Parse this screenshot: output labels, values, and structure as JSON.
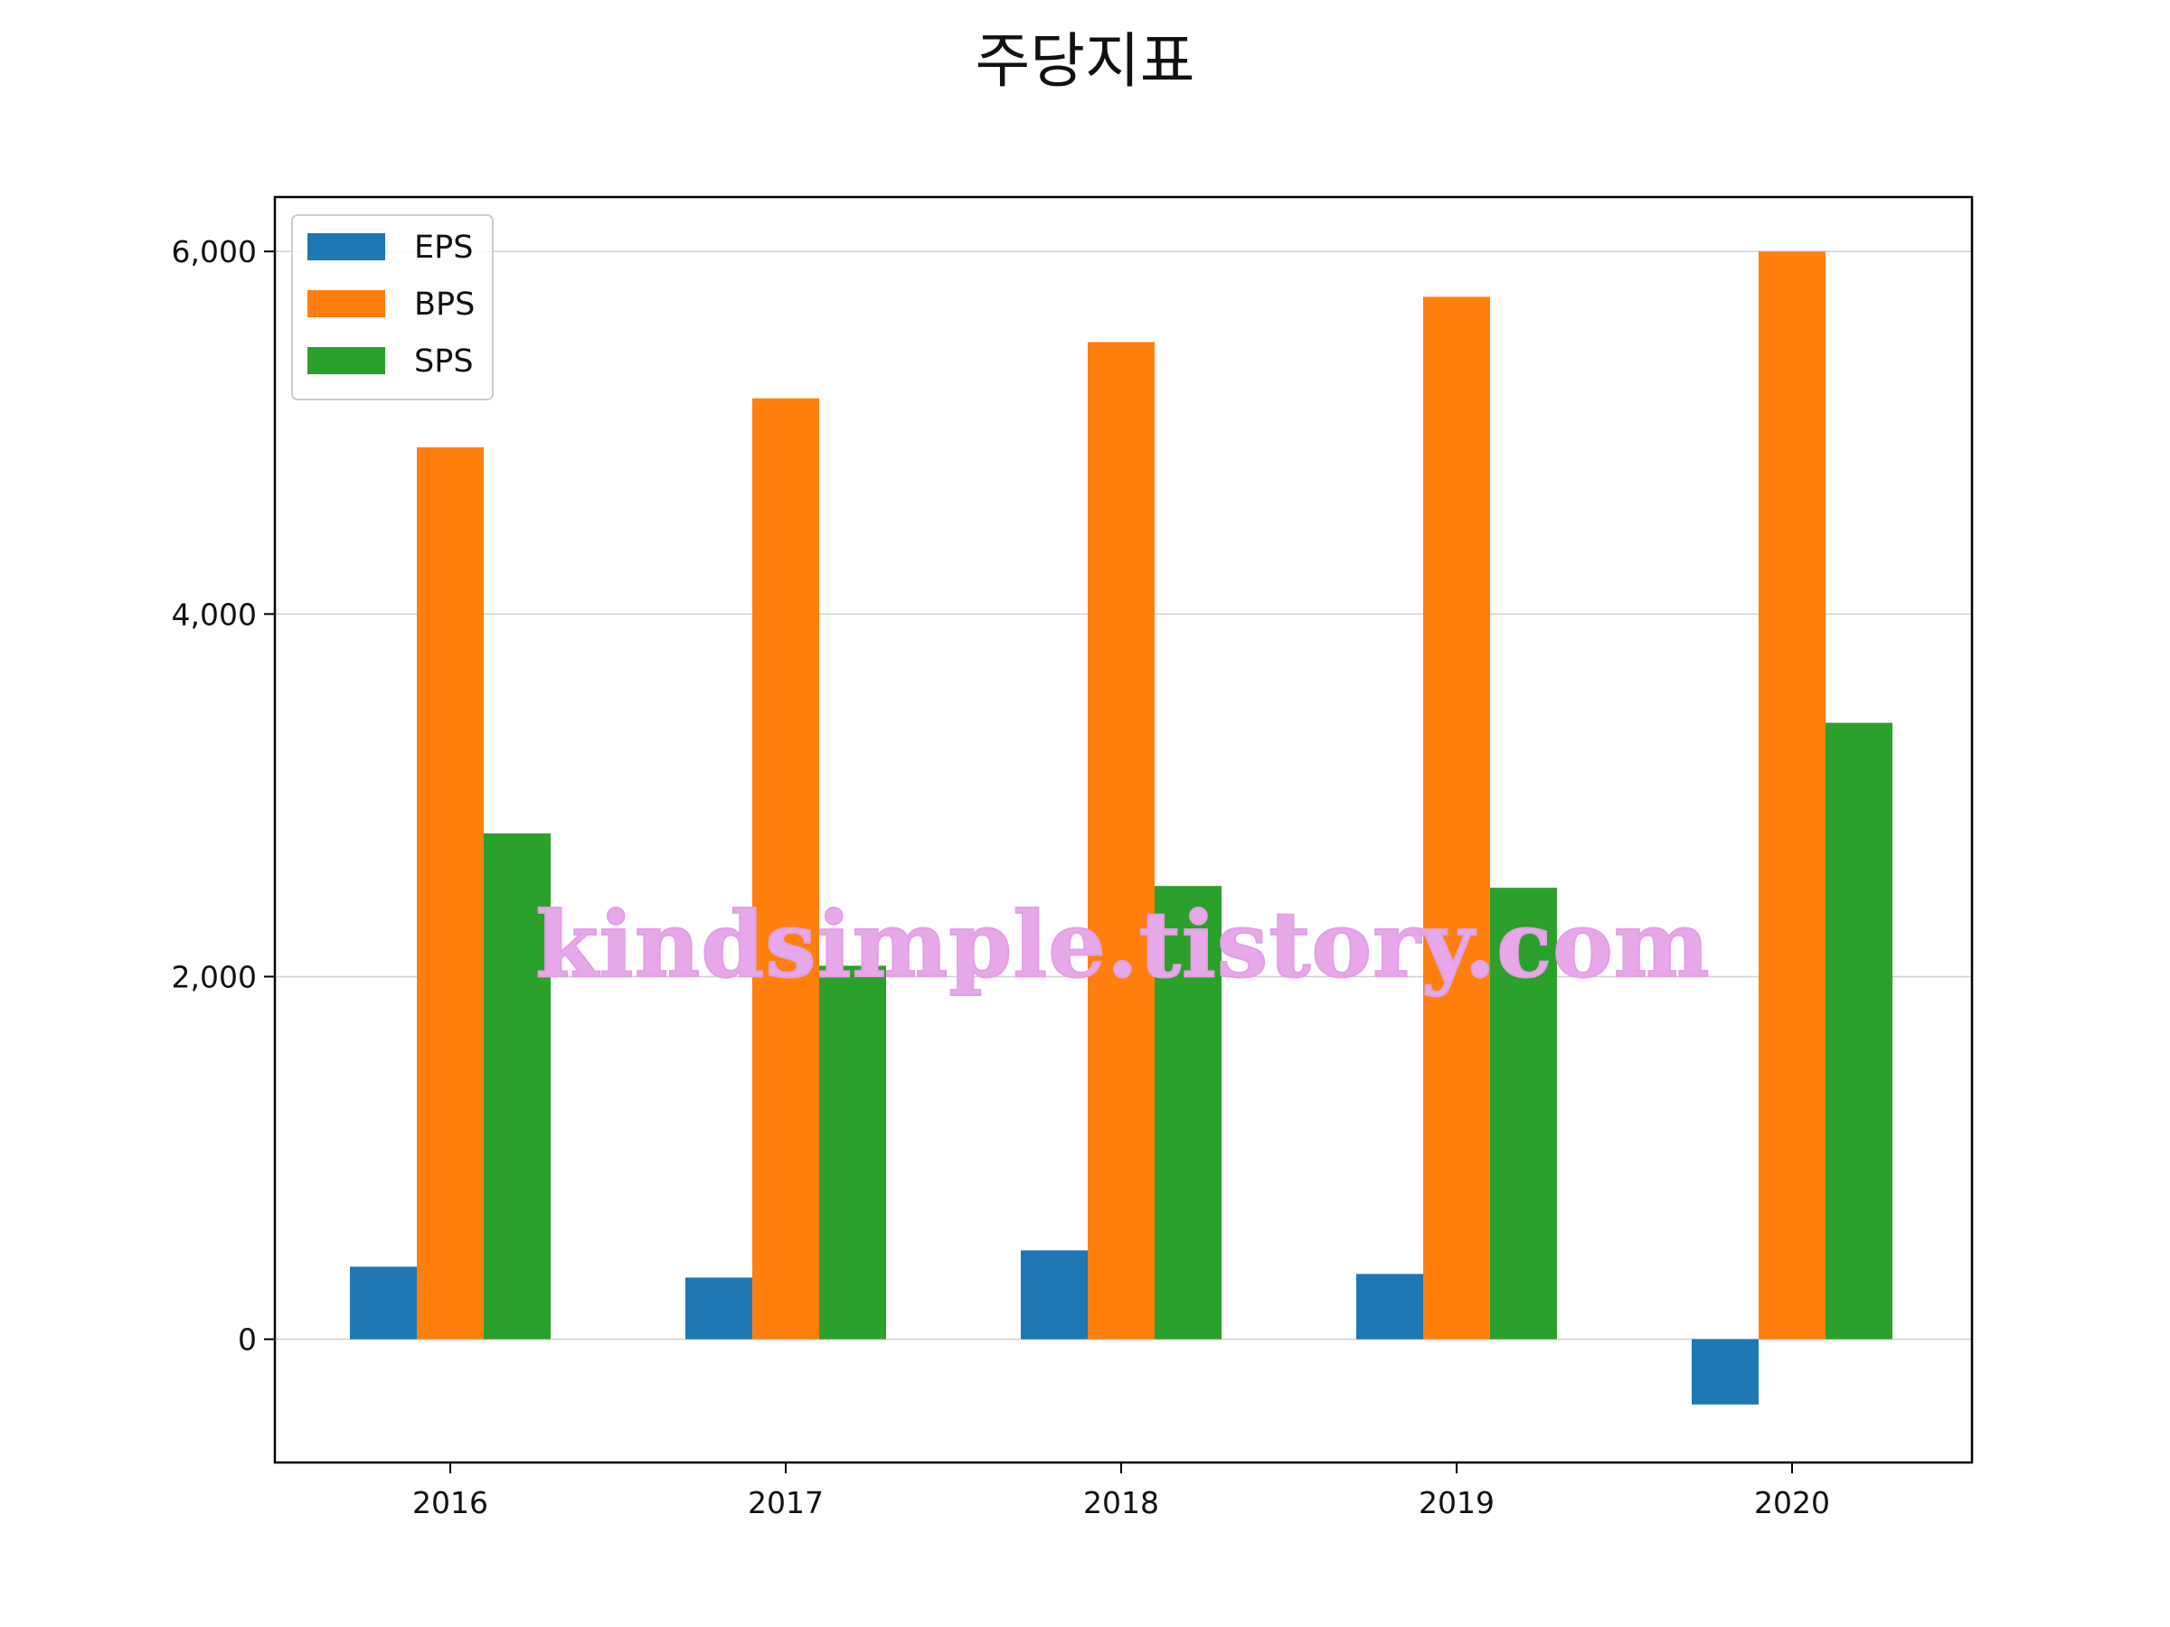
{
  "chart_data": {
    "type": "bar",
    "title": "주당지표",
    "categories": [
      "2016",
      "2017",
      "2018",
      "2019",
      "2020"
    ],
    "series": [
      {
        "name": "EPS",
        "color": "#1f77b4",
        "values": [
          400,
          340,
          490,
          360,
          -360
        ]
      },
      {
        "name": "BPS",
        "color": "#ff7f0e",
        "values": [
          4920,
          5190,
          5500,
          5750,
          6000
        ]
      },
      {
        "name": "SPS",
        "color": "#2ca02c",
        "values": [
          2790,
          2060,
          2500,
          2490,
          3400
        ]
      }
    ],
    "yticks": [
      0,
      2000,
      4000,
      6000
    ],
    "ytick_labels": [
      "0",
      "2,000",
      "4,000",
      "6,000"
    ],
    "ylim": [
      -680,
      6300
    ],
    "grid": "y",
    "legend_position": "top-left"
  },
  "watermark": {
    "text": "kindsimple.tistory.com"
  }
}
